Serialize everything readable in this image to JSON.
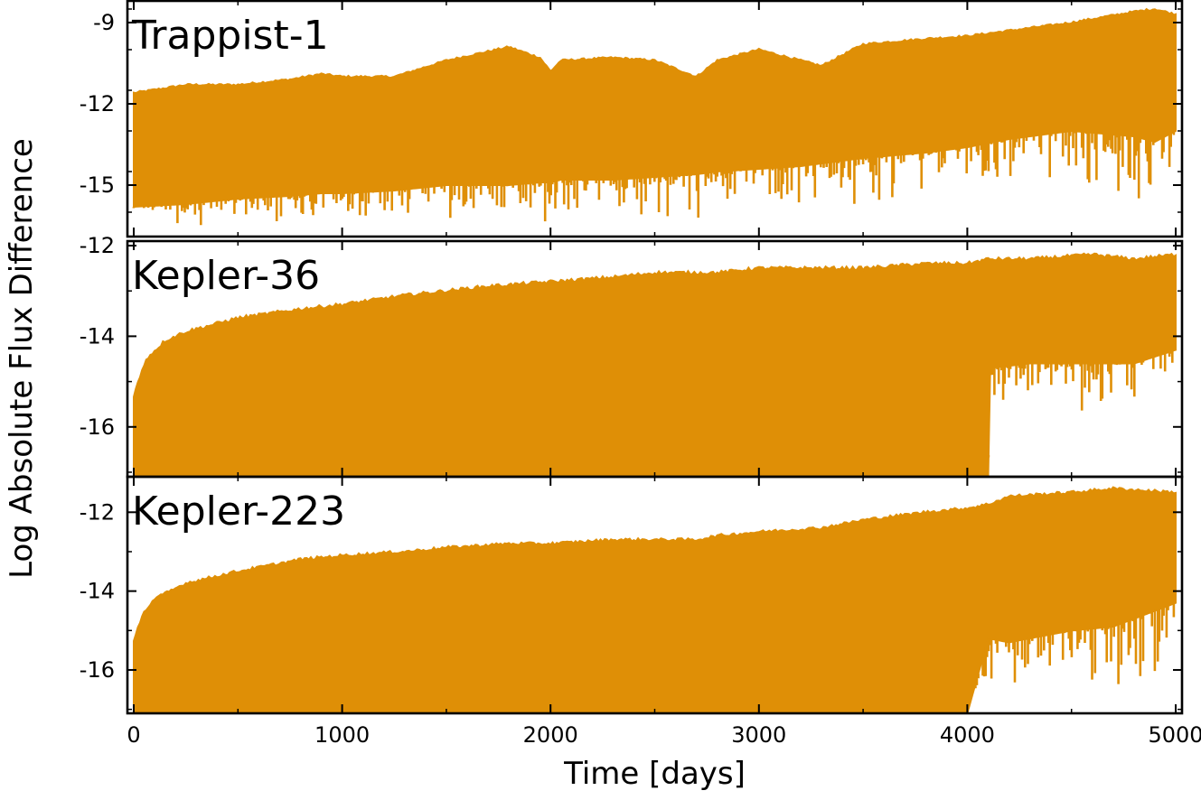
{
  "figure": {
    "xlabel": "Time [days]",
    "ylabel": "Log Absolute Flux Difference",
    "line_color": "#DF8F06"
  },
  "chart_data": [
    {
      "type": "line",
      "title": "Trappist-1",
      "xlim": [
        0,
        5000
      ],
      "ylim": [
        -16.9,
        -8.2
      ],
      "x_ticks": [
        0,
        1000,
        2000,
        3000,
        4000,
        5000
      ],
      "y_ticks": [
        -9,
        -12,
        -15
      ],
      "y_tick_labels": [
        "-9",
        "-12",
        "-15"
      ],
      "grid": false,
      "series": [
        {
          "x": [
            0,
            250,
            500,
            750,
            900,
            1000,
            1250,
            1500,
            1800,
            1950,
            2000,
            2050,
            2300,
            2500,
            2700,
            2800,
            3000,
            3200,
            3300,
            3500,
            3800,
            4000,
            4200,
            4500,
            4800,
            4900,
            5000
          ],
          "upper": [
            -11.6,
            -11.3,
            -11.3,
            -11.1,
            -10.9,
            -11.0,
            -11.0,
            -10.4,
            -9.9,
            -10.3,
            -10.8,
            -10.4,
            -10.3,
            -10.4,
            -11.0,
            -10.4,
            -10.0,
            -10.4,
            -10.6,
            -9.8,
            -9.6,
            -9.5,
            -9.3,
            -9.0,
            -8.6,
            -8.5,
            -8.7
          ],
          "lower": [
            -15.8,
            -15.7,
            -15.5,
            -15.4,
            -15.3,
            -15.3,
            -15.2,
            -15.0,
            -15.0,
            -14.9,
            -14.9,
            -14.8,
            -14.8,
            -14.7,
            -14.6,
            -14.5,
            -14.4,
            -14.3,
            -14.2,
            -14.0,
            -13.8,
            -13.6,
            -13.3,
            -13.0,
            -13.2,
            -13.4,
            -13.0
          ],
          "min": [
            -16.2,
            -16.5,
            -16.4,
            -16.6,
            -16.5,
            -16.8,
            -16.6,
            -16.5,
            -16.7,
            -16.3,
            -16.5,
            -16.2,
            -16.0,
            -16.5,
            -16.2,
            -16.0,
            -15.9,
            -16.0,
            -15.8,
            -15.9,
            -15.5,
            -15.5,
            -15.1,
            -15.0,
            -15.8,
            -15.7,
            -14.3
          ]
        }
      ]
    },
    {
      "type": "line",
      "title": "Kepler-36",
      "xlim": [
        0,
        5000
      ],
      "ylim": [
        -17.1,
        -11.9
      ],
      "x_ticks": [
        0,
        1000,
        2000,
        3000,
        4000,
        5000
      ],
      "y_ticks": [
        -12,
        -14,
        -16
      ],
      "y_tick_labels": [
        "-12",
        "-14",
        "-16"
      ],
      "grid": false,
      "series": [
        {
          "x": [
            0,
            60,
            150,
            250,
            500,
            800,
            1000,
            1300,
            1500,
            1700,
            2000,
            2300,
            2500,
            2800,
            3000,
            3300,
            3500,
            3800,
            4000,
            4100,
            4110,
            4300,
            4600,
            4800,
            5000
          ],
          "upper": [
            -15.3,
            -14.5,
            -14.1,
            -13.9,
            -13.6,
            -13.4,
            -13.3,
            -13.1,
            -13.0,
            -12.9,
            -12.8,
            -12.7,
            -12.6,
            -12.6,
            -12.5,
            -12.5,
            -12.5,
            -12.4,
            -12.4,
            -12.3,
            -12.3,
            -12.3,
            -12.2,
            -12.3,
            -12.2
          ],
          "lower": [
            -17.1,
            -17.1,
            -17.1,
            -17.1,
            -17.1,
            -17.1,
            -17.1,
            -17.1,
            -17.1,
            -17.1,
            -17.1,
            -17.1,
            -17.1,
            -17.1,
            -17.1,
            -17.1,
            -17.1,
            -17.1,
            -17.1,
            -17.1,
            -14.7,
            -14.6,
            -14.6,
            -14.6,
            -14.3
          ],
          "min": [
            -17.1,
            -17.1,
            -17.1,
            -17.1,
            -17.1,
            -17.1,
            -17.1,
            -17.1,
            -17.1,
            -17.1,
            -17.1,
            -17.1,
            -17.1,
            -17.1,
            -17.1,
            -17.1,
            -17.1,
            -17.1,
            -17.1,
            -17.1,
            -15.4,
            -15.5,
            -15.9,
            -15.6,
            -15.0
          ]
        }
      ]
    },
    {
      "type": "line",
      "title": "Kepler-223",
      "xlim": [
        0,
        5000
      ],
      "ylim": [
        -17.1,
        -11.1
      ],
      "x_ticks": [
        0,
        1000,
        2000,
        3000,
        4000,
        5000
      ],
      "x_tick_labels": [
        "0",
        "1000",
        "2000",
        "3000",
        "4000",
        "5000"
      ],
      "y_ticks": [
        -12,
        -14,
        -16
      ],
      "y_tick_labels": [
        "-12",
        "-14",
        "-16"
      ],
      "grid": false,
      "series": [
        {
          "x": [
            0,
            40,
            100,
            250,
            500,
            800,
            1000,
            1300,
            1500,
            1800,
            2000,
            2300,
            2500,
            2700,
            2800,
            3000,
            3300,
            3500,
            3800,
            4000,
            4100,
            4200,
            4500,
            4700,
            5000
          ],
          "upper": [
            -15.3,
            -14.6,
            -14.2,
            -13.8,
            -13.5,
            -13.2,
            -13.1,
            -13.0,
            -12.9,
            -12.8,
            -12.8,
            -12.7,
            -12.7,
            -12.7,
            -12.6,
            -12.5,
            -12.4,
            -12.2,
            -12.0,
            -11.9,
            -11.8,
            -11.6,
            -11.5,
            -11.4,
            -11.5
          ],
          "lower": [
            -17.1,
            -17.1,
            -17.1,
            -17.1,
            -17.1,
            -17.1,
            -17.1,
            -17.1,
            -17.1,
            -17.1,
            -17.1,
            -17.1,
            -17.1,
            -17.1,
            -17.1,
            -17.1,
            -17.1,
            -17.1,
            -17.1,
            -17.1,
            -15.2,
            -15.3,
            -15.0,
            -14.9,
            -14.3
          ],
          "min": [
            -17.1,
            -17.1,
            -17.1,
            -17.1,
            -17.1,
            -17.1,
            -17.1,
            -17.1,
            -17.1,
            -17.1,
            -17.1,
            -17.1,
            -17.1,
            -17.1,
            -17.1,
            -17.1,
            -17.1,
            -17.1,
            -17.1,
            -17.1,
            -16.2,
            -16.6,
            -16.7,
            -16.9,
            -16.1
          ]
        }
      ]
    }
  ]
}
